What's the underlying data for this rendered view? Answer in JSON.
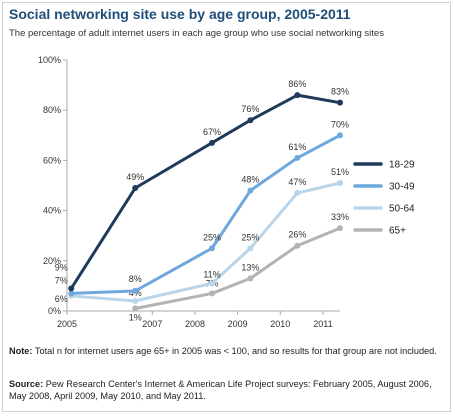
{
  "header": {
    "title": "Social networking site use by age group, 2005-2011",
    "subtitle": "The percentage of adult internet users in each age group who use social networking sites"
  },
  "footer": {
    "note_label": "Note:",
    "note_text": " Total n for internet users age 65+ in 2005 was < 100, and so results for that group are not included.",
    "source_label": "Source:",
    "source_text": " Pew Research Center's Internet & American Life Project surveys: February 2005, August 2006, May 2008, April 2009, May 2010, and May 2011."
  },
  "chart_data": {
    "type": "line",
    "x": [
      2005.1,
      2006.6,
      2008.4,
      2009.3,
      2010.4,
      2011.4
    ],
    "xticks": [
      2005,
      2007,
      2008,
      2009,
      2010,
      2011
    ],
    "xtick_labels": [
      "2005",
      "2007",
      "2008",
      "2009",
      "2010",
      "2011"
    ],
    "ylim": [
      0,
      100
    ],
    "yticks": [
      0,
      20,
      40,
      60,
      80,
      100
    ],
    "ytick_labels": [
      "0%",
      "20%",
      "40%",
      "60%",
      "80%",
      "100%"
    ],
    "legend_position": "right",
    "series": [
      {
        "name": "18-29",
        "color": "#1f3b5c",
        "values": [
          9,
          49,
          67,
          76,
          86,
          83
        ],
        "labels": [
          "9%",
          "49%",
          "67%",
          "76%",
          "86%",
          "83%"
        ]
      },
      {
        "name": "30-49",
        "color": "#6fa8dc",
        "values": [
          7,
          8,
          25,
          48,
          61,
          70
        ],
        "labels": [
          "7%",
          "8%",
          "25%",
          "48%",
          "61%",
          "70%"
        ]
      },
      {
        "name": "50-64",
        "color": "#b9d5ea",
        "values": [
          6,
          4,
          11,
          25,
          47,
          51
        ],
        "labels": [
          "6%",
          "4%",
          "11%",
          "25%",
          "47%",
          "51%"
        ]
      },
      {
        "name": "65+",
        "color": "#b3b3b3",
        "values": [
          null,
          1,
          7,
          13,
          26,
          33
        ],
        "labels": [
          null,
          "1%",
          "7%",
          "13%",
          "26%",
          "33%"
        ]
      }
    ]
  }
}
